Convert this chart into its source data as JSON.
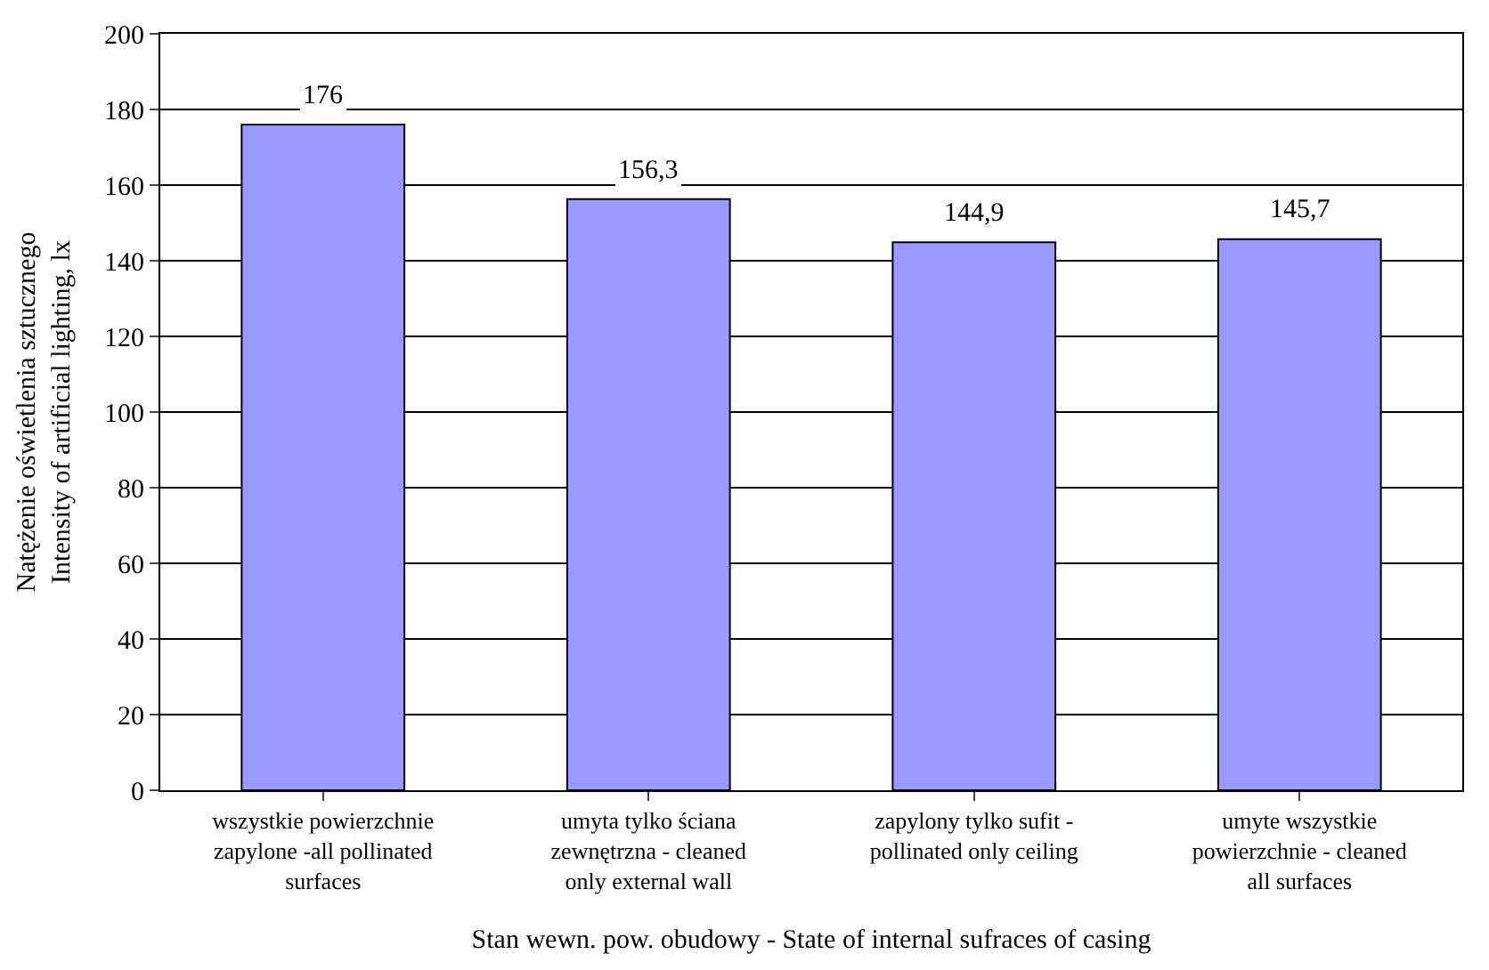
{
  "chart_data": {
    "type": "bar",
    "xlabel": "Stan wewn. pow. obudowy - State of internal sufraces of casing",
    "ylabel": "Natężenie oświetlenia sztucznego Intensity of artificial lighting, lx",
    "categories": [
      "wszystkie powierzchnie zapylone -all pollinated surfaces",
      "umyta tylko ściana zewnętrzna - cleaned only external wall",
      "zapylony tylko sufit - pollinated only ceiling",
      "umyte wszystkie powierzchnie - cleaned all surfaces"
    ],
    "values": [
      176,
      156.3,
      144.9,
      145.7
    ],
    "value_labels": [
      "176",
      "156,3",
      "144,9",
      "145,7"
    ],
    "color": "#9999ff",
    "ylim": [
      0,
      200
    ],
    "yticks": [
      0,
      20,
      40,
      60,
      80,
      100,
      120,
      140,
      160,
      180,
      200
    ],
    "grid": "y",
    "legend": false
  }
}
